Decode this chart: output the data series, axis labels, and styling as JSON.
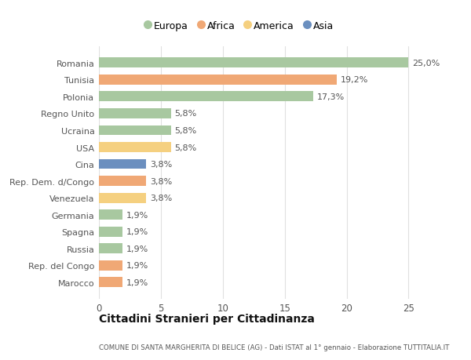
{
  "categories": [
    "Marocco",
    "Rep. del Congo",
    "Russia",
    "Spagna",
    "Germania",
    "Venezuela",
    "Rep. Dem. d/Congo",
    "Cina",
    "USA",
    "Ucraina",
    "Regno Unito",
    "Polonia",
    "Tunisia",
    "Romania"
  ],
  "values": [
    1.9,
    1.9,
    1.9,
    1.9,
    1.9,
    3.8,
    3.8,
    3.8,
    5.8,
    5.8,
    5.8,
    17.3,
    19.2,
    25.0
  ],
  "labels": [
    "1,9%",
    "1,9%",
    "1,9%",
    "1,9%",
    "1,9%",
    "3,8%",
    "3,8%",
    "3,8%",
    "5,8%",
    "5,8%",
    "5,8%",
    "17,3%",
    "19,2%",
    "25,0%"
  ],
  "colors": [
    "#f0a875",
    "#f0a875",
    "#a8c8a0",
    "#a8c8a0",
    "#a8c8a0",
    "#f5d080",
    "#f0a875",
    "#6b8fbf",
    "#f5d080",
    "#a8c8a0",
    "#a8c8a0",
    "#a8c8a0",
    "#f0a875",
    "#a8c8a0"
  ],
  "legend_labels": [
    "Europa",
    "Africa",
    "America",
    "Asia"
  ],
  "legend_colors": [
    "#a8c8a0",
    "#f0a875",
    "#f5d080",
    "#6b8fbf"
  ],
  "title": "Cittadini Stranieri per Cittadinanza",
  "subtitle": "COMUNE DI SANTA MARGHERITA DI BELICE (AG) - Dati ISTAT al 1° gennaio - Elaborazione TUTTITALIA.IT",
  "xlim": [
    0,
    27
  ],
  "xticks": [
    0,
    5,
    10,
    15,
    20,
    25
  ],
  "bg_color": "#ffffff",
  "grid_color": "#e0e0e0"
}
